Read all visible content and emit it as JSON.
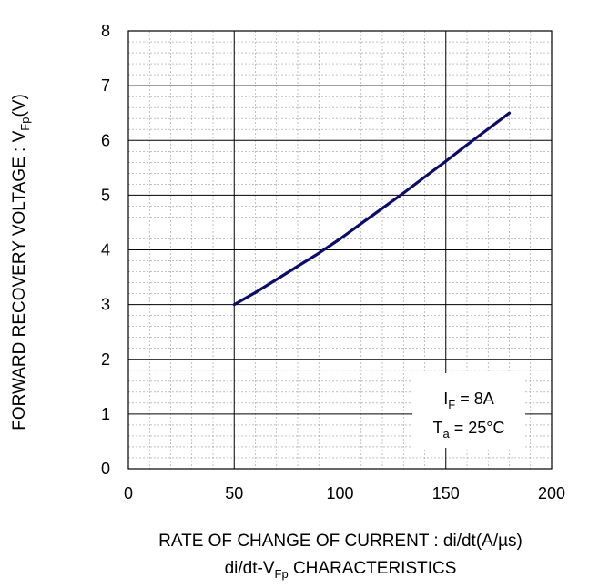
{
  "chart_data": {
    "type": "line",
    "title": "di/dt-VFp  CHARACTERISTICS",
    "title_parts": {
      "base": "di/dt-V",
      "sub": "Fp",
      "rest": "  CHARACTERISTICS"
    },
    "xlabel": "RATE OF CHANGE OF CURRENT : di/dt(A/µs)",
    "ylabel": "FORWARD RECOVERY  VOLTAGE : VFp(V)",
    "ylabel_parts": {
      "base": "FORWARD RECOVERY  VOLTAGE : V",
      "sub": "Fp",
      "rest": "(V)"
    },
    "xlim": [
      0,
      200
    ],
    "ylim": [
      0,
      8
    ],
    "x_major_ticks": [
      0,
      50,
      100,
      150,
      200
    ],
    "x_tick_labels": [
      "0",
      "50",
      "100",
      "150",
      "200"
    ],
    "x_minor_step": 10,
    "y_major_ticks": [
      0,
      1,
      2,
      3,
      4,
      5,
      6,
      7,
      8
    ],
    "y_tick_labels": [
      "0",
      "1",
      "2",
      "3",
      "4",
      "5",
      "6",
      "7",
      "8"
    ],
    "y_minor_step": 0.2,
    "grid": true,
    "line_color": "#0b0b6b",
    "series": [
      {
        "x": [
          50,
          60,
          70,
          80,
          90,
          100,
          110,
          120,
          130,
          140,
          150,
          160,
          170,
          180
        ],
        "values": [
          3.0,
          3.22,
          3.46,
          3.7,
          3.94,
          4.2,
          4.48,
          4.76,
          5.04,
          5.33,
          5.62,
          5.92,
          6.21,
          6.5
        ]
      }
    ],
    "annotation": {
      "line1": {
        "base": "I",
        "sub": "F",
        "rest": " = 8A"
      },
      "line2": {
        "base": "T",
        "sub": "a",
        "rest": " = 25°C"
      }
    }
  }
}
